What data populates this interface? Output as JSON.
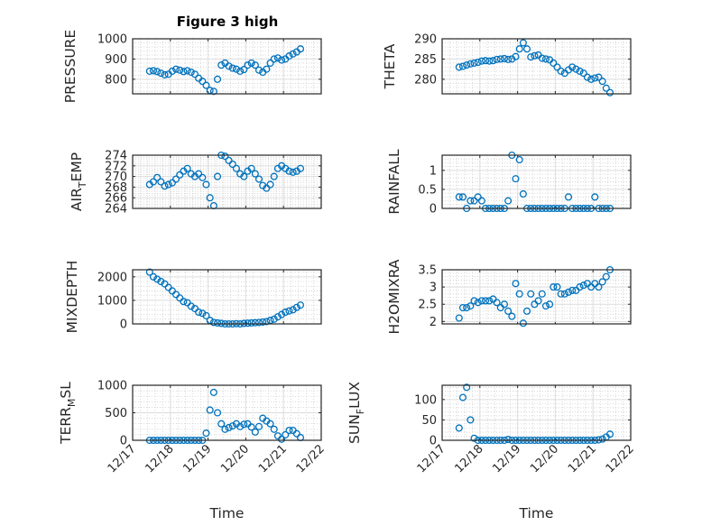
{
  "figure_title": "Figure 3 high",
  "marker_color": "#0072BD",
  "chart_data": [
    {
      "type": "scatter",
      "title": "Figure 3 high",
      "ylabel": "PRESSURE",
      "ylim": [
        728,
        1000
      ],
      "yticks": [
        800,
        900,
        1000
      ],
      "x_start_days": 0.45,
      "x_step_days": 0.1,
      "values": [
        840,
        842,
        838,
        830,
        822,
        825,
        840,
        850,
        845,
        838,
        842,
        835,
        825,
        805,
        790,
        770,
        745,
        740,
        800,
        870,
        880,
        865,
        855,
        850,
        840,
        848,
        870,
        880,
        870,
        845,
        835,
        850,
        880,
        900,
        905,
        895,
        900,
        915,
        925,
        935,
        950
      ]
    },
    {
      "type": "scatter",
      "ylabel": "THETA",
      "ylim": [
        276.4,
        290
      ],
      "yticks": [
        280,
        285,
        290
      ],
      "x_start_days": 0.45,
      "x_step_days": 0.1,
      "values": [
        283,
        283.2,
        283.5,
        283.8,
        284,
        284.2,
        284.5,
        284.6,
        284.5,
        284.6,
        284.9,
        285,
        285.1,
        284.9,
        285,
        285.6,
        287.5,
        289,
        287.5,
        285.5,
        285.8,
        286,
        285.2,
        285,
        284.8,
        284,
        283,
        282,
        281.5,
        282.3,
        283,
        282.5,
        282,
        281.5,
        280.5,
        280,
        280.3,
        280.5,
        279.5,
        277.8,
        276.7
      ]
    },
    {
      "type": "scatter",
      "ylabel": "AIR_TEMP",
      "ylim": [
        264,
        274
      ],
      "yticks": [
        264,
        266,
        268,
        270,
        272,
        274
      ],
      "x_start_days": 0.45,
      "x_step_days": 0.1,
      "values": [
        268.5,
        269,
        269.8,
        269,
        268.2,
        268.5,
        268.8,
        269.5,
        270.3,
        271,
        271.5,
        270.5,
        270,
        270.5,
        269.8,
        268.5,
        266,
        264.5,
        270,
        274,
        273.8,
        273,
        272.3,
        271.5,
        270.5,
        270,
        271,
        271.5,
        270.5,
        269.5,
        268.3,
        267.8,
        268.5,
        270,
        271.5,
        272,
        271.5,
        271,
        270.8,
        271,
        271.5
      ]
    },
    {
      "type": "scatter",
      "ylabel": "RAINFALL",
      "ylim": [
        0,
        1.4
      ],
      "yticks": [
        0,
        0.5,
        1
      ],
      "x_start_days": 0.45,
      "x_step_days": 0.1,
      "values": [
        0.3,
        0.3,
        0,
        0.2,
        0.2,
        0.3,
        0.2,
        0,
        0,
        0,
        0,
        0,
        0,
        0.2,
        1.4,
        0.78,
        1.28,
        0.38,
        0,
        0,
        0,
        0,
        0,
        0,
        0,
        0,
        0,
        0,
        0,
        0.3,
        0,
        0,
        0,
        0,
        0,
        0,
        0.3,
        0,
        0,
        0,
        0
      ]
    },
    {
      "type": "scatter",
      "ylabel": "MIXDEPTH",
      "ylim": [
        0,
        2300
      ],
      "yticks": [
        0,
        1000,
        2000
      ],
      "x_start_days": 0.45,
      "x_step_days": 0.1,
      "values": [
        2200,
        2000,
        1900,
        1800,
        1700,
        1550,
        1400,
        1250,
        1100,
        950,
        900,
        750,
        650,
        500,
        450,
        350,
        150,
        60,
        40,
        20,
        0,
        0,
        0,
        10,
        0,
        20,
        30,
        40,
        50,
        60,
        80,
        100,
        150,
        200,
        300,
        400,
        500,
        550,
        600,
        700,
        800
      ]
    },
    {
      "type": "scatter",
      "ylabel": "H2OMIXRA",
      "ylim": [
        1.93,
        3.5
      ],
      "yticks": [
        2,
        2.5,
        3,
        3.5
      ],
      "x_start_days": 0.45,
      "x_step_days": 0.1,
      "values": [
        2.1,
        2.4,
        2.4,
        2.45,
        2.6,
        2.55,
        2.6,
        2.6,
        2.6,
        2.65,
        2.55,
        2.4,
        2.5,
        2.3,
        2.15,
        3.1,
        2.8,
        1.95,
        2.3,
        2.8,
        2.5,
        2.6,
        2.8,
        2.45,
        2.5,
        3.0,
        3.0,
        2.8,
        2.8,
        2.85,
        2.9,
        2.9,
        3.0,
        3.05,
        3.1,
        3.0,
        3.1,
        3.0,
        3.15,
        3.3,
        3.5
      ]
    },
    {
      "type": "scatter",
      "ylabel": "TERR_MSL",
      "ylim": [
        0,
        1000
      ],
      "yticks": [
        0,
        500,
        1000
      ],
      "x_start_days": 0.45,
      "x_step_days": 0.1,
      "values": [
        0,
        0,
        0,
        0,
        0,
        0,
        0,
        0,
        0,
        0,
        0,
        0,
        0,
        0,
        0,
        130,
        550,
        870,
        500,
        300,
        200,
        230,
        260,
        300,
        250,
        290,
        300,
        240,
        150,
        250,
        400,
        350,
        300,
        200,
        80,
        20,
        100,
        180,
        180,
        120,
        50
      ],
      "xticklabels": [
        "12/17",
        "12/18",
        "12/19",
        "12/20",
        "12/21",
        "12/22"
      ],
      "xlabel": "Time"
    },
    {
      "type": "scatter",
      "ylabel": "SUN_FLUX",
      "ylim": [
        0,
        135
      ],
      "yticks": [
        0,
        50,
        100
      ],
      "x_start_days": 0.45,
      "x_step_days": 0.1,
      "values": [
        30,
        105,
        130,
        50,
        5,
        0,
        0,
        0,
        0,
        0,
        0,
        0,
        0,
        2,
        0,
        0,
        0,
        0,
        0,
        0,
        0,
        0,
        0,
        0,
        0,
        0,
        0,
        0,
        0,
        0,
        0,
        0,
        0,
        0,
        0,
        0,
        0,
        1,
        3,
        8,
        15
      ],
      "xticklabels": [
        "12/17",
        "12/18",
        "12/19",
        "12/20",
        "12/21",
        "12/22"
      ],
      "xlabel": "Time"
    }
  ]
}
